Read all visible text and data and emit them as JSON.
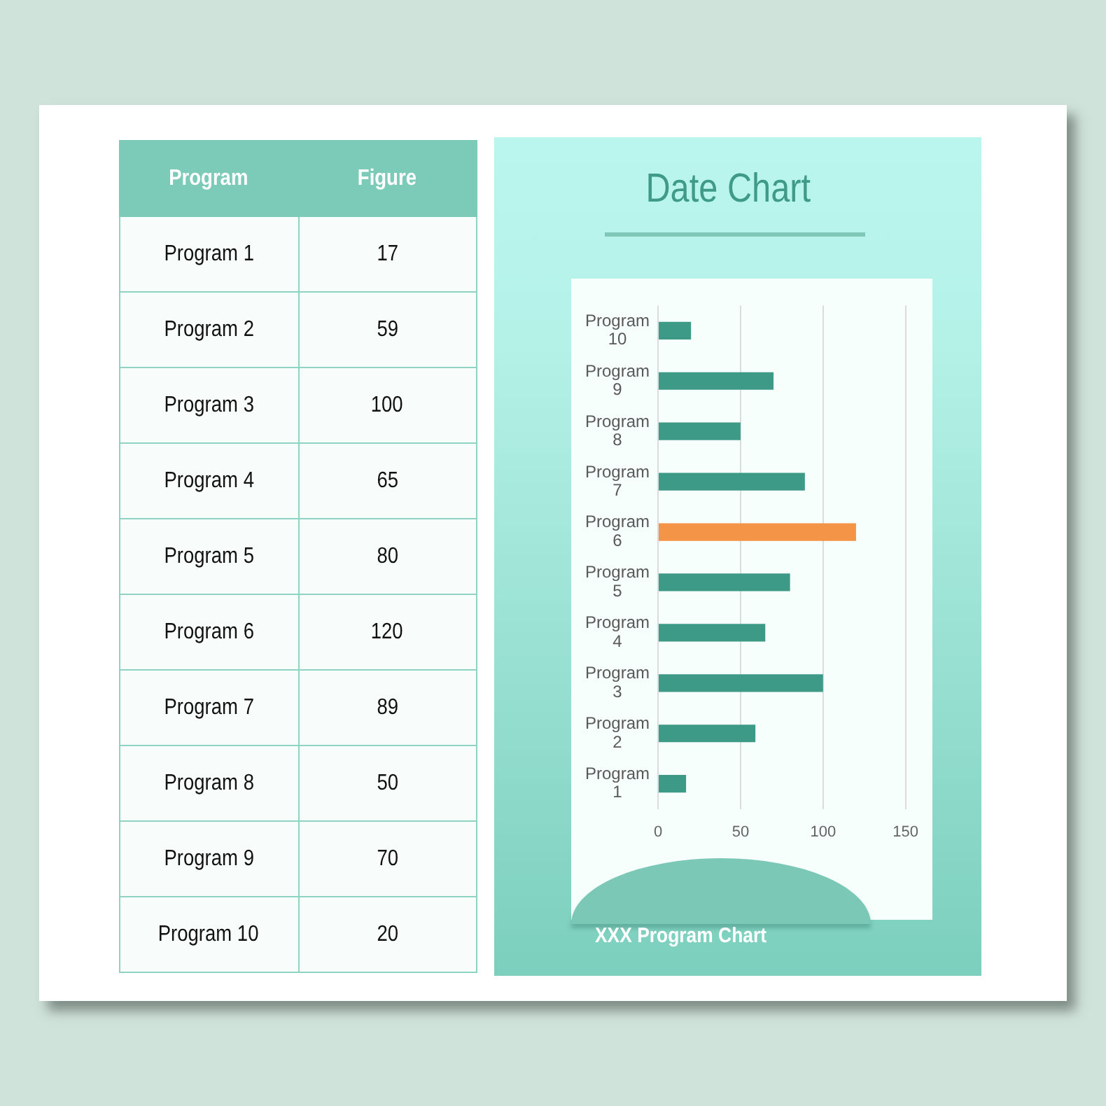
{
  "chart_data": [
    {
      "type": "other",
      "categories": [
        "Program 1",
        "Program 2",
        "Program 3",
        "Program 4",
        "Program 5",
        "Program 6",
        "Program 7",
        "Program 8",
        "Program 9",
        "Program 10"
      ],
      "values": [
        17,
        59,
        100,
        65,
        80,
        120,
        89,
        50,
        70,
        20
      ],
      "data_labels": true,
      "annotations": [
        "Program",
        "Figure"
      ]
    },
    {
      "type": "bar",
      "orientation": "horizontal",
      "title": "Date Chart",
      "categories": [
        "Program 10",
        "Program 9",
        "Program 8",
        "Program 7",
        "Program 6",
        "Program 5",
        "Program 4",
        "Program 3",
        "Program 2",
        "Program 1"
      ],
      "values": [
        20,
        70,
        50,
        89,
        120,
        80,
        65,
        100,
        59,
        17
      ],
      "colors": [
        "#3d9a86",
        "#3d9a86",
        "#3d9a86",
        "#3d9a86",
        "#f39447",
        "#3d9a86",
        "#3d9a86",
        "#3d9a86",
        "#3d9a86",
        "#3d9a86"
      ],
      "xlim": [
        0,
        150
      ],
      "xticks": [
        0,
        50,
        100,
        150
      ],
      "grid": "x",
      "annotations": [
        "XXX Program Chart"
      ]
    }
  ]
}
